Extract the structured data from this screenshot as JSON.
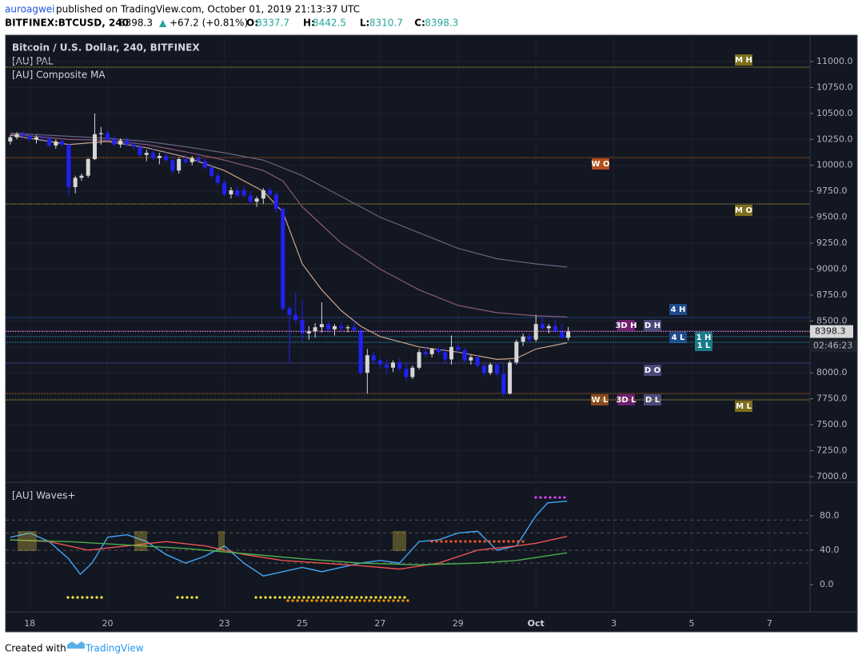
{
  "header": {
    "author": "auroagwei",
    "published": "published on TradingView.com, October 01, 2019 21:13:37 UTC",
    "symbol": "BITFINEX:BTCUSD, 240",
    "arrow": "▲",
    "change": "+67.2 (+0.81%)",
    "ohlc_labels": [
      "O:",
      "H:",
      "L:",
      "C:"
    ]
  },
  "footer": {
    "created": "Created with",
    "brand": "TradingView"
  },
  "chart_data": {
    "type": "candlestick",
    "title": "Bitcoin / U.S. Dollar, 240, BITFINEX",
    "indicators": [
      "[AU] PAL",
      "[AU] Composite MA"
    ],
    "xlim": [
      17.38,
      38.04
    ],
    "xticks": [
      18,
      20,
      23,
      25,
      27,
      29,
      {
        "value": 31,
        "label": "Oct"
      },
      {
        "value": 33,
        "label": "3"
      },
      {
        "value": 35,
        "label": "5"
      },
      {
        "value": 37,
        "label": "7"
      }
    ],
    "ylim": [
      6946,
      11254
    ],
    "yticks": [
      {
        "value": 7000,
        "label": "7000.0"
      },
      {
        "value": 7250,
        "label": "7250.0"
      },
      {
        "value": 7500,
        "label": "7500.0"
      },
      {
        "value": 7750,
        "label": "7750.0"
      },
      {
        "value": 8000,
        "label": "8000.0"
      },
      {
        "value": 8250,
        "label": "8250.0"
      },
      {
        "value": 8500,
        "label": "8500.0"
      },
      {
        "value": 8750,
        "label": "8750.0"
      },
      {
        "value": 9000,
        "label": "9000.0"
      },
      {
        "value": 9250,
        "label": "9250.0"
      },
      {
        "value": 9500,
        "label": "9500.0"
      },
      {
        "value": 9750,
        "label": "9750.0"
      },
      {
        "value": 10000,
        "label": "10000.0"
      },
      {
        "value": 10250,
        "label": "10250.0"
      },
      {
        "value": 10500,
        "label": "10500.0"
      },
      {
        "value": 10750,
        "label": "10750.0"
      },
      {
        "value": 11000,
        "label": "11000.0"
      }
    ],
    "up_color": "#d6d6d6",
    "down_color": "#2121f5",
    "countdown": "02:46:23",
    "candles": [
      [
        17.5,
        10230,
        10290,
        10200,
        10270
      ],
      [
        17.67,
        10270,
        10320,
        10250,
        10300
      ],
      [
        17.83,
        10300,
        10330,
        10260,
        10280
      ],
      [
        18,
        10280,
        10310,
        10230,
        10250
      ],
      [
        18.17,
        10250,
        10290,
        10210,
        10270
      ],
      [
        18.33,
        10270,
        10300,
        10240,
        10260
      ],
      [
        18.5,
        10260,
        10280,
        10170,
        10190
      ],
      [
        18.67,
        10190,
        10250,
        10160,
        10230
      ],
      [
        18.83,
        10230,
        10260,
        10180,
        10200
      ],
      [
        19,
        10200,
        10210,
        9700,
        9790
      ],
      [
        19.17,
        9790,
        9900,
        9730,
        9880
      ],
      [
        19.33,
        9880,
        9920,
        9850,
        9900
      ],
      [
        19.5,
        9900,
        10070,
        9880,
        10060
      ],
      [
        19.67,
        10060,
        10500,
        10050,
        10300
      ],
      [
        19.83,
        10300,
        10370,
        10200,
        10310
      ],
      [
        20,
        10310,
        10340,
        10230,
        10250
      ],
      [
        20.17,
        10250,
        10290,
        10180,
        10200
      ],
      [
        20.33,
        10200,
        10260,
        10170,
        10240
      ],
      [
        20.5,
        10240,
        10270,
        10180,
        10200
      ],
      [
        20.67,
        10200,
        10240,
        10150,
        10180
      ],
      [
        20.83,
        10180,
        10220,
        10080,
        10100
      ],
      [
        21,
        10100,
        10150,
        10040,
        10120
      ],
      [
        21.17,
        10120,
        10160,
        10050,
        10070
      ],
      [
        21.33,
        10070,
        10120,
        10010,
        10090
      ],
      [
        21.5,
        10090,
        10130,
        10030,
        10050
      ],
      [
        21.67,
        10050,
        10090,
        9920,
        9950
      ],
      [
        21.83,
        9950,
        10080,
        9920,
        10060
      ],
      [
        22,
        10060,
        10110,
        10010,
        10030
      ],
      [
        22.17,
        10030,
        10090,
        10000,
        10070
      ],
      [
        22.33,
        10070,
        10120,
        10020,
        10040
      ],
      [
        22.5,
        10040,
        10070,
        9960,
        9980
      ],
      [
        22.67,
        9980,
        10010,
        9880,
        9900
      ],
      [
        22.83,
        9900,
        9930,
        9810,
        9830
      ],
      [
        23,
        9830,
        9860,
        9700,
        9720
      ],
      [
        23.17,
        9720,
        9790,
        9680,
        9760
      ],
      [
        23.33,
        9760,
        9800,
        9690,
        9710
      ],
      [
        23.5,
        9760,
        9800,
        9690,
        9710
      ],
      [
        23.67,
        9710,
        9750,
        9620,
        9650
      ],
      [
        23.83,
        9650,
        9700,
        9600,
        9680
      ],
      [
        24,
        9680,
        9780,
        9630,
        9760
      ],
      [
        24.17,
        9760,
        9790,
        9700,
        9720
      ],
      [
        24.33,
        9720,
        9750,
        9540,
        9580
      ],
      [
        24.5,
        9580,
        9600,
        8600,
        8620
      ],
      [
        24.67,
        8620,
        8640,
        8100,
        8560
      ],
      [
        24.83,
        8560,
        8780,
        8480,
        8510
      ],
      [
        25,
        8510,
        8700,
        8300,
        8380
      ],
      [
        25.17,
        8380,
        8450,
        8320,
        8400
      ],
      [
        25.33,
        8400,
        8480,
        8340,
        8440
      ],
      [
        25.5,
        8440,
        8680,
        8390,
        8470
      ],
      [
        25.67,
        8470,
        8500,
        8380,
        8420
      ],
      [
        25.83,
        8420,
        8470,
        8360,
        8450
      ],
      [
        26,
        8450,
        8490,
        8400,
        8430
      ],
      [
        26.17,
        8430,
        8460,
        8390,
        8440
      ],
      [
        26.33,
        8440,
        8500,
        8400,
        8410
      ],
      [
        26.5,
        8410,
        8420,
        7980,
        8000
      ],
      [
        26.67,
        8000,
        8230,
        7800,
        8170
      ],
      [
        26.83,
        8170,
        8200,
        8080,
        8120
      ],
      [
        27,
        8120,
        8140,
        8040,
        8080
      ],
      [
        27.17,
        8080,
        8130,
        7990,
        8050
      ],
      [
        27.33,
        8050,
        8120,
        8010,
        8100
      ],
      [
        27.5,
        8100,
        8140,
        8020,
        8040
      ],
      [
        27.67,
        8040,
        8090,
        7920,
        7960
      ],
      [
        27.83,
        7960,
        8070,
        7940,
        8050
      ],
      [
        28,
        8050,
        8230,
        8030,
        8200
      ],
      [
        28.17,
        8200,
        8260,
        8150,
        8180
      ],
      [
        28.33,
        8180,
        8240,
        8150,
        8230
      ],
      [
        28.5,
        8230,
        8250,
        8170,
        8200
      ],
      [
        28.67,
        8200,
        8240,
        8100,
        8130
      ],
      [
        28.83,
        8130,
        8360,
        8080,
        8250
      ],
      [
        29,
        8250,
        8290,
        8190,
        8220
      ],
      [
        29.17,
        8220,
        8240,
        8100,
        8120
      ],
      [
        29.33,
        8120,
        8170,
        8080,
        8150
      ],
      [
        29.5,
        8150,
        8170,
        8050,
        8070
      ],
      [
        29.67,
        8070,
        8090,
        7970,
        8000
      ],
      [
        29.83,
        8000,
        8100,
        7980,
        8080
      ],
      [
        30,
        8080,
        8100,
        7960,
        7990
      ],
      [
        30.17,
        7990,
        8080,
        7770,
        7800
      ],
      [
        30.33,
        7800,
        8120,
        7790,
        8100
      ],
      [
        30.5,
        8100,
        8320,
        8080,
        8300
      ],
      [
        30.67,
        8300,
        8380,
        8260,
        8350
      ],
      [
        30.83,
        8350,
        8380,
        8290,
        8320
      ],
      [
        31,
        8320,
        8560,
        8300,
        8470
      ],
      [
        31.17,
        8470,
        8530,
        8410,
        8430
      ],
      [
        31.33,
        8430,
        8470,
        8380,
        8450
      ],
      [
        31.5,
        8450,
        8520,
        8390,
        8400
      ],
      [
        31.67,
        8400,
        8480,
        8330,
        8337.7
      ],
      [
        31.83,
        8337.7,
        8442.5,
        8310.7,
        8398.3
      ]
    ],
    "ma": [
      {
        "color": "#c9a58c",
        "x": [
          17.5,
          19,
          20,
          21,
          22,
          23,
          24,
          24.5,
          25,
          25.5,
          26,
          26.5,
          27,
          28,
          29,
          30,
          30.5,
          31,
          31.8
        ],
        "values": [
          10290,
          10200,
          10230,
          10170,
          10080,
          9950,
          9750,
          9550,
          9050,
          8800,
          8600,
          8450,
          8350,
          8250,
          8200,
          8130,
          8140,
          8230,
          8290
        ]
      },
      {
        "color": "#8a5a78",
        "x": [
          17.5,
          19,
          20,
          21,
          22,
          23,
          24,
          24.5,
          25,
          26,
          27,
          28,
          29,
          30,
          31,
          31.8
        ],
        "values": [
          10300,
          10250,
          10240,
          10200,
          10130,
          10050,
          9950,
          9850,
          9600,
          9250,
          9000,
          8800,
          8650,
          8580,
          8550,
          8540
        ]
      },
      {
        "color": "#6c6282",
        "x": [
          17.5,
          19,
          20,
          21,
          22,
          23,
          24,
          25,
          26,
          27,
          28,
          29,
          30,
          31,
          31.8
        ],
        "values": [
          10310,
          10280,
          10260,
          10230,
          10180,
          10120,
          10050,
          9900,
          9700,
          9500,
          9350,
          9200,
          9100,
          9050,
          9020
        ]
      }
    ],
    "levels": [
      {
        "value": 10946,
        "color": "#c8b43c",
        "labels": [
          {
            "text": "M H",
            "bg": "#7d6f1c"
          }
        ]
      },
      {
        "value": 10075,
        "color": "#d2691e",
        "labels": [
          {
            "text": "W O",
            "bg": "#b4501e"
          }
        ]
      },
      {
        "value": 9628,
        "color": "#c8b43c",
        "labels": [
          {
            "text": "M O",
            "bg": "#7d6f1c"
          }
        ]
      },
      {
        "value": 8534,
        "color": "#2962c8",
        "labels": [
          {
            "text": "4 H",
            "bg": "#1c4a8a"
          }
        ]
      },
      {
        "value": 8403,
        "color": "#e040e0",
        "labels": [
          {
            "text": "3D H",
            "bg": "#6e1f6e"
          },
          {
            "text": "D H",
            "bg": "#4a4a7a"
          }
        ]
      },
      {
        "value": 8349,
        "color": "#2a9ab0",
        "labels": [
          {
            "text": "4 L",
            "bg": "#1c4a8a"
          },
          {
            "text": "1 H",
            "bg": "#1a7a8a"
          }
        ]
      },
      {
        "value": 8295,
        "color": "#2a9ab0",
        "labels": [
          {
            "text": "1 L",
            "bg": "#1a7a8a"
          }
        ]
      },
      {
        "value": 8094,
        "color": "#6a5acd",
        "labels": [
          {
            "text": "D O",
            "bg": "#4a4a7a"
          }
        ]
      },
      {
        "value": 7801,
        "color": "#d2691e",
        "labels": [
          {
            "text": "W L",
            "bg": "#8a4a1e"
          },
          {
            "text": "3D L",
            "bg": "#6e1f6e"
          },
          {
            "text": "D L",
            "bg": "#4a4a7a"
          }
        ]
      },
      {
        "value": 7740,
        "color": "#c8b43c",
        "labels": [
          {
            "text": "M L",
            "bg": "#7d6f1c"
          }
        ]
      }
    ],
    "oscillator": {
      "type": "line",
      "title": "[AU] Waves+",
      "ylim": [
        -31.6,
        118
      ],
      "yticks": [
        {
          "value": 0,
          "label": "0.0"
        },
        {
          "value": 40,
          "label": "40.0"
        },
        {
          "value": 80,
          "label": "80.0"
        }
      ],
      "reference_lines": [
        75,
        60,
        40,
        25
      ],
      "series": [
        {
          "color": "#42a5f5",
          "x": [
            17.5,
            18,
            18.5,
            19,
            19.3,
            19.6,
            20,
            20.5,
            21,
            21.5,
            22,
            22.5,
            23,
            23.5,
            24,
            24.5,
            25,
            25.5,
            26,
            26.5,
            27,
            27.5,
            28,
            28.5,
            29,
            29.5,
            30,
            30.5,
            31,
            31.3,
            31.8
          ],
          "values": [
            55,
            60,
            50,
            30,
            12,
            25,
            55,
            58,
            50,
            35,
            25,
            33,
            45,
            25,
            10,
            15,
            20,
            15,
            20,
            25,
            28,
            25,
            50,
            52,
            60,
            62,
            40,
            45,
            80,
            95,
            97
          ]
        },
        {
          "color": "#ef5350",
          "x": [
            17.5,
            18.5,
            19.5,
            20.5,
            21.5,
            22.5,
            23.5,
            24.5,
            25.5,
            26.5,
            27.5,
            28.5,
            29.5,
            30.5,
            31,
            31.8
          ],
          "values": [
            52,
            50,
            40,
            45,
            50,
            45,
            35,
            28,
            25,
            22,
            18,
            25,
            40,
            45,
            48,
            56
          ]
        },
        {
          "color": "#4caf50",
          "x": [
            17.5,
            19,
            20.5,
            22,
            23.5,
            25,
            26.5,
            28,
            29.5,
            30.5,
            31.8
          ],
          "values": [
            52,
            50,
            46,
            42,
            36,
            30,
            25,
            23,
            25,
            28,
            37
          ]
        }
      ]
    }
  }
}
